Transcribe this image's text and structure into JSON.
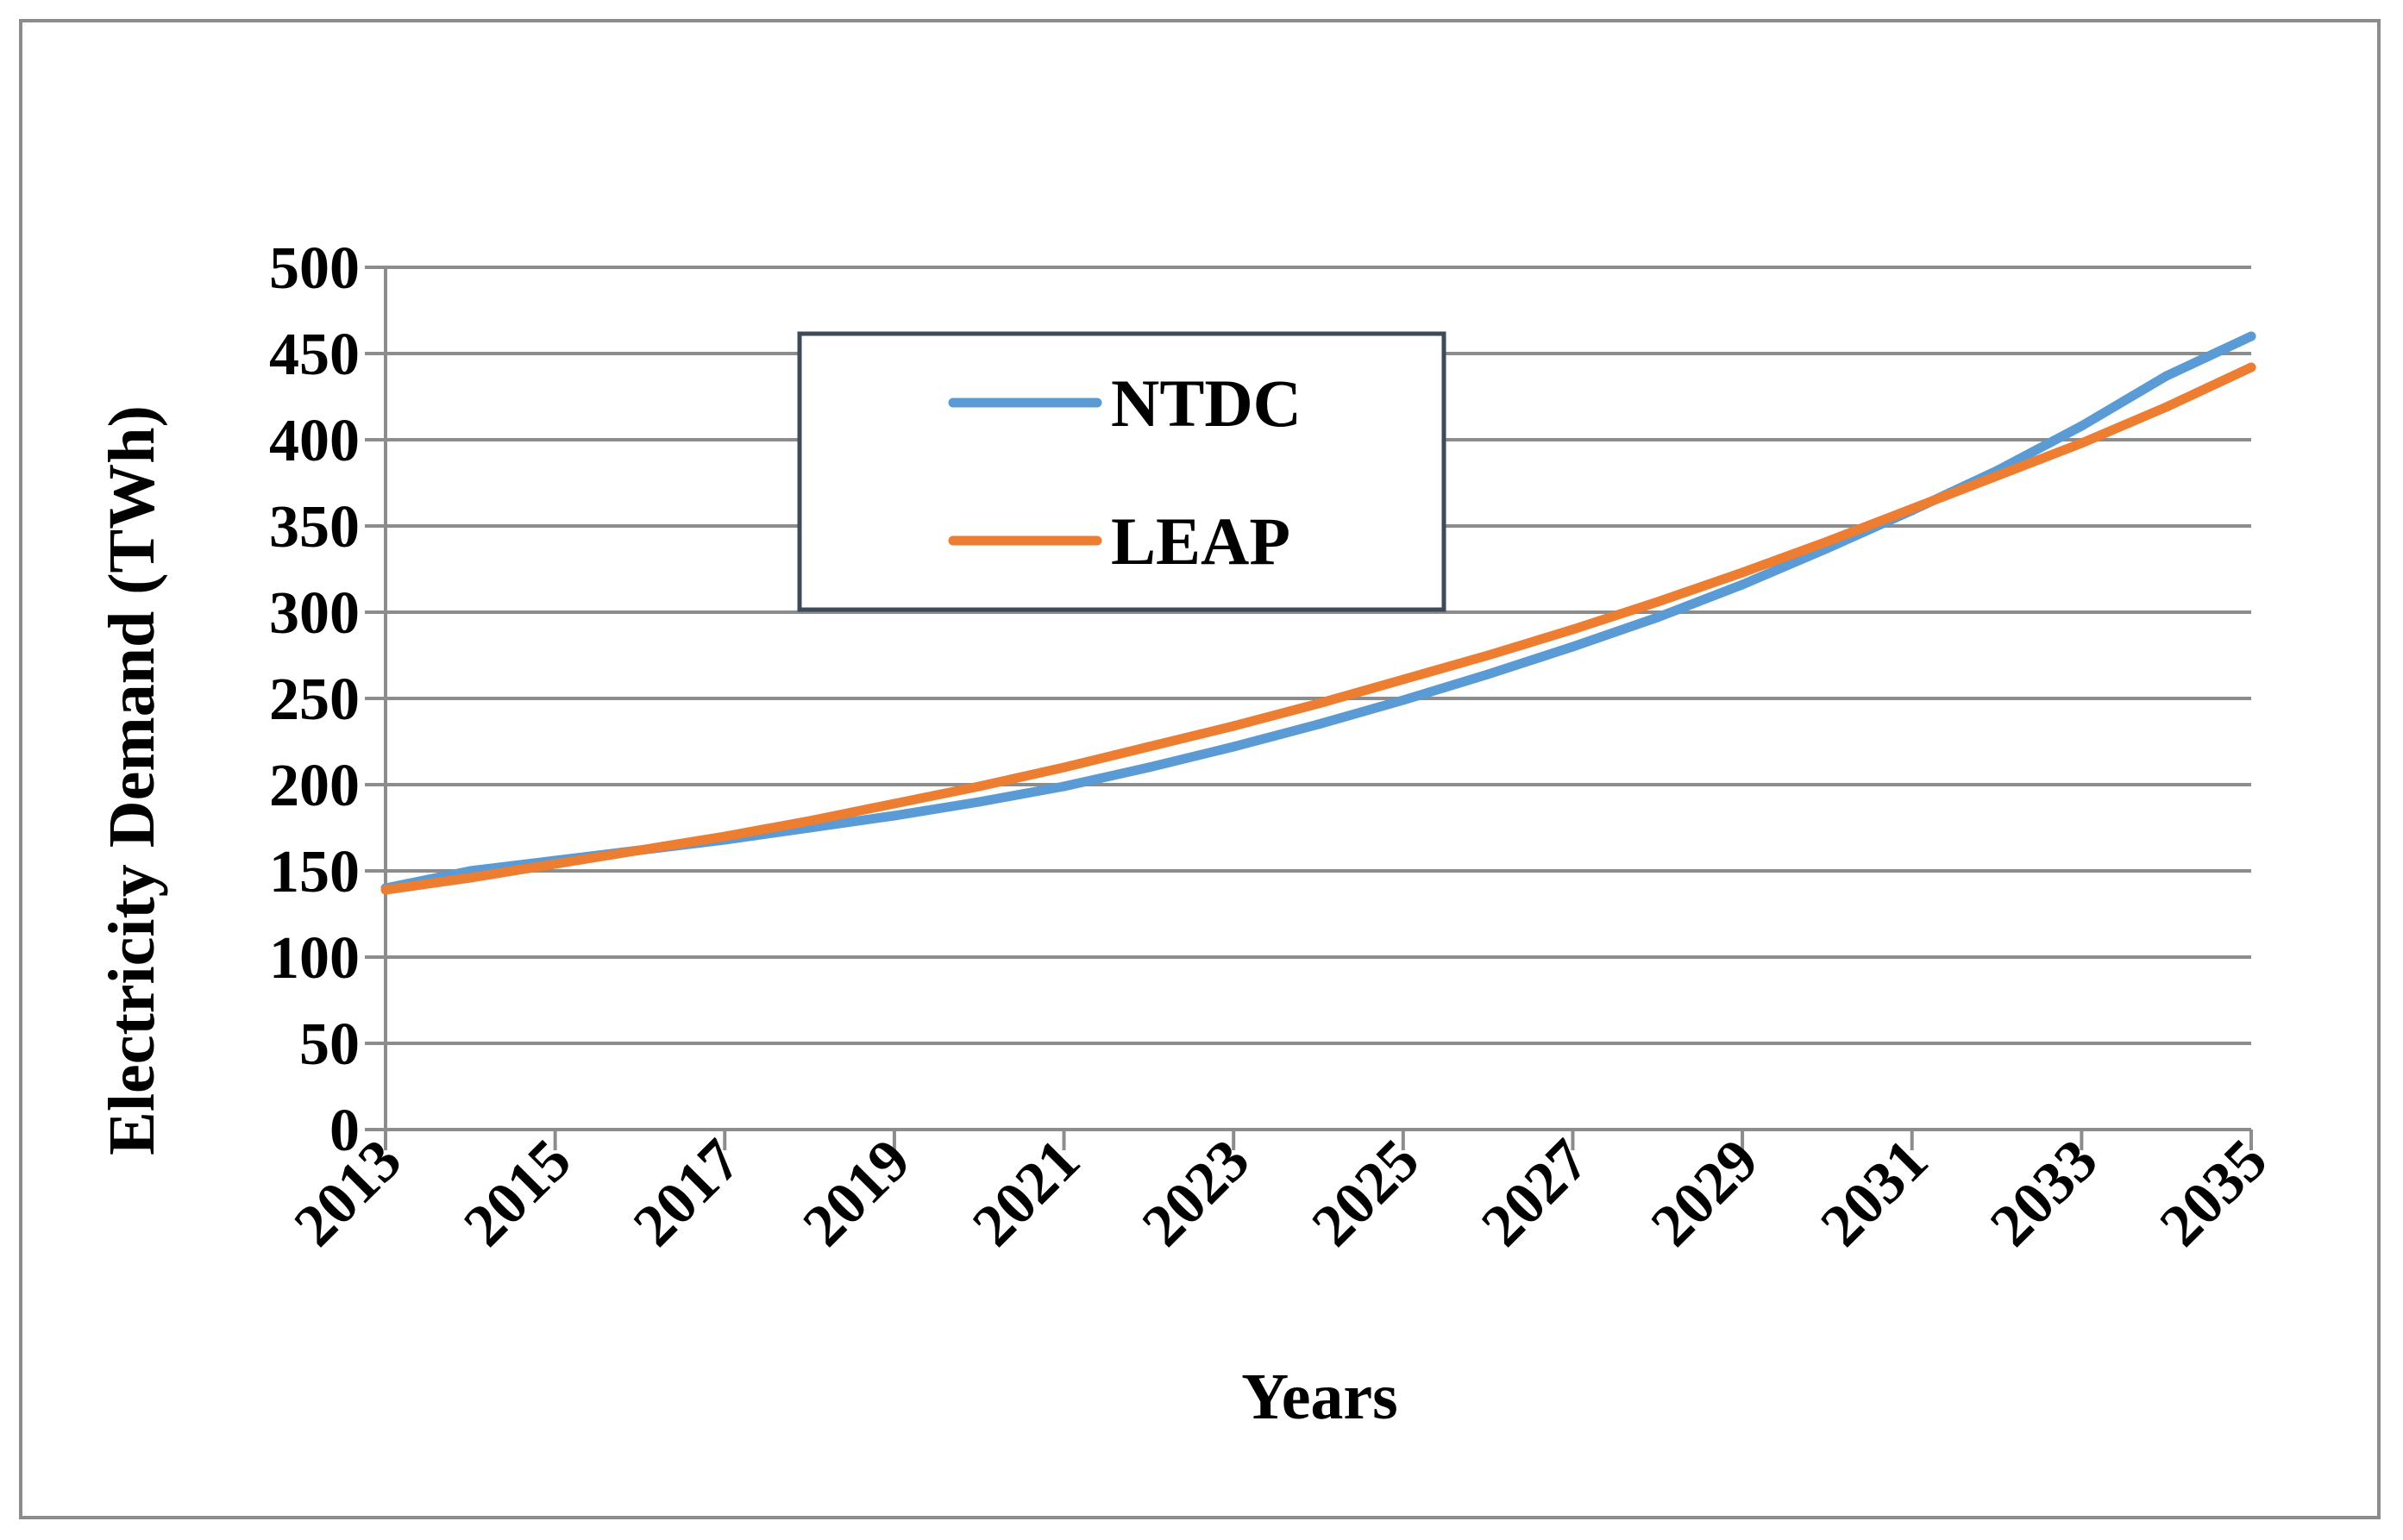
{
  "chart_data": {
    "type": "line",
    "title": "",
    "xlabel": "Years",
    "ylabel": "Electricity Demand (TWh)",
    "x": [
      2013,
      2014,
      2015,
      2016,
      2017,
      2018,
      2019,
      2020,
      2021,
      2022,
      2023,
      2024,
      2025,
      2026,
      2027,
      2028,
      2029,
      2030,
      2031,
      2032,
      2033,
      2034,
      2035
    ],
    "xticks": [
      "2013",
      "2015",
      "2017",
      "2019",
      "2021",
      "2023",
      "2025",
      "2027",
      "2029",
      "2031",
      "2033",
      "2035"
    ],
    "yticks": [
      "0",
      "50",
      "100",
      "150",
      "200",
      "250",
      "300",
      "350",
      "400",
      "450",
      "500"
    ],
    "xlim": [
      2013,
      2035
    ],
    "ylim": [
      0,
      500
    ],
    "grid": true,
    "legend_position": "top-center",
    "series": [
      {
        "name": "NTDC",
        "color": "#5b9bd5",
        "values": [
          140,
          150,
          156,
          162,
          168,
          175,
          182,
          190,
          199,
          210,
          222,
          235,
          249,
          264,
          280,
          297,
          316,
          337,
          359,
          382,
          408,
          437,
          460
        ]
      },
      {
        "name": "LEAP",
        "color": "#ed7d31",
        "values": [
          139,
          146,
          154,
          162,
          170,
          179,
          189,
          199,
          210,
          222,
          234,
          247,
          261,
          275,
          290,
          306,
          323,
          341,
          360,
          379,
          398,
          419,
          442
        ]
      }
    ]
  }
}
